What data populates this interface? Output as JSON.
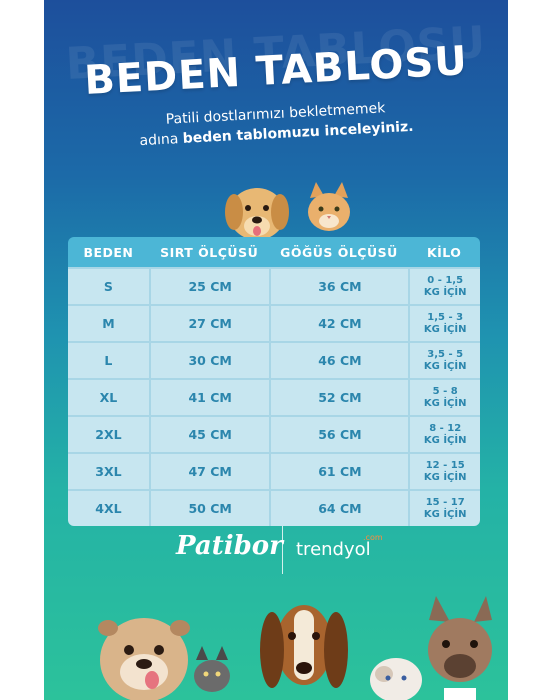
{
  "header": {
    "title": "BEDEN TABLOSU",
    "subtitle_line1": "Patili dostlarımızı bekletmemek",
    "subtitle_line2_prefix": "adına",
    "subtitle_line2_bold": "beden tablomuzu inceleyiniz."
  },
  "table": {
    "columns": [
      "BEDEN",
      "SIRT ÖLÇÜSÜ",
      "GÖĞÜS ÖLÇÜSÜ",
      "KİLO"
    ],
    "rows": [
      {
        "beden": "S",
        "sirt": "25 CM",
        "gogus": "36 CM",
        "kilo1": "0 - 1,5",
        "kilo2": "KG İÇİN"
      },
      {
        "beden": "M",
        "sirt": "27 CM",
        "gogus": "42 CM",
        "kilo1": "1,5 - 3",
        "kilo2": "KG İÇİN"
      },
      {
        "beden": "L",
        "sirt": "30 CM",
        "gogus": "46 CM",
        "kilo1": "3,5 - 5",
        "kilo2": "KG İÇİN"
      },
      {
        "beden": "XL",
        "sirt": "41 CM",
        "gogus": "52 CM",
        "kilo1": "5 - 8",
        "kilo2": "KG İÇİN"
      },
      {
        "beden": "2XL",
        "sirt": "45 CM",
        "gogus": "56 CM",
        "kilo1": "8 - 12",
        "kilo2": "KG İÇİN"
      },
      {
        "beden": "3XL",
        "sirt": "47 CM",
        "gogus": "61 CM",
        "kilo1": "12 - 15",
        "kilo2": "KG İÇİN"
      },
      {
        "beden": "4XL",
        "sirt": "50 CM",
        "gogus": "64 CM",
        "kilo1": "15 - 17",
        "kilo2": "KG İÇİN"
      }
    ]
  },
  "brands": {
    "patibor": "Patibor",
    "trendyol": "trendyol",
    "trendyol_suffix": ".com"
  },
  "colors": {
    "header_cell": "#4cb6d6",
    "body_cell": "#c7e6f0",
    "cell_text": "#2b86ad",
    "bg_top": "#1d4f9c",
    "bg_bottom": "#2cc29b"
  }
}
